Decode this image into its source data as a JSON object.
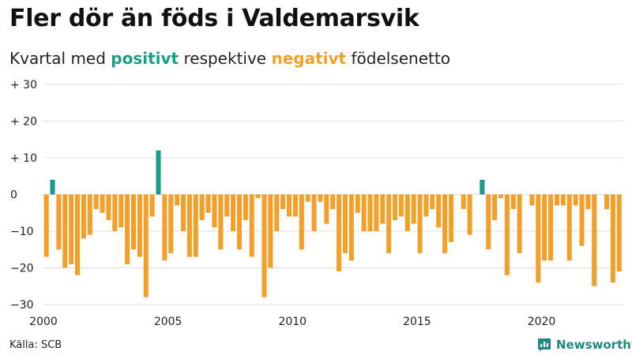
{
  "title": "Fler dör än föds i Valdemarsvik",
  "subtitle": {
    "prefix": "Kvartal med ",
    "positive_word": "positivt",
    "middle": " respektive ",
    "negative_word": "negativt",
    "suffix": " födelsenetto"
  },
  "source": "Källa: SCB",
  "brand": "Newsworthy",
  "colors": {
    "positive": "#1a9b8b",
    "negative": "#f2a02a",
    "grid": "#dddddd",
    "brand": "#1b8a82"
  },
  "chart_data": {
    "type": "bar",
    "title": "Fler dör än föds i Valdemarsvik",
    "subtitle": "Kvartal med positivt respektive negativt födelsenetto",
    "xlabel": "",
    "ylabel": "",
    "ylim": [
      -30,
      30
    ],
    "yticks": [
      -30,
      -20,
      -10,
      0,
      10,
      20,
      30
    ],
    "ytick_labels": [
      "−30",
      "−20",
      "−10",
      "0",
      "+ 10",
      "+ 20",
      "+ 30"
    ],
    "xticks": [
      "2000",
      "2005",
      "2010",
      "2015",
      "2020"
    ],
    "start_year": 2000,
    "periods_per_year": 4,
    "grid": true,
    "legend": "in subtitle",
    "values": [
      -17,
      4,
      -15,
      -20,
      -19,
      -22,
      -12,
      -11,
      -4,
      -5,
      -7,
      -10,
      -9,
      -19,
      -15,
      -17,
      -28,
      -6,
      12,
      -18,
      -16,
      -3,
      -10,
      -17,
      -17,
      -7,
      -5,
      -9,
      -15,
      -6,
      -10,
      -15,
      -7,
      -17,
      -1,
      -28,
      -20,
      -10,
      -4,
      -6,
      -6,
      -15,
      -2,
      -10,
      -2,
      -8,
      -4,
      -21,
      -16,
      -18,
      -5,
      -10,
      -10,
      -10,
      -8,
      -16,
      -7,
      -6,
      -10,
      -8,
      -16,
      -6,
      -4,
      -9,
      -16,
      -13,
      0,
      -4,
      -11,
      0,
      4,
      -15,
      -7,
      -1,
      -22,
      -4,
      -16,
      0,
      -3,
      -24,
      -18,
      -18,
      -3,
      -3,
      -18,
      -3,
      -14,
      -4,
      -25,
      0,
      -4,
      -24,
      -21
    ]
  }
}
